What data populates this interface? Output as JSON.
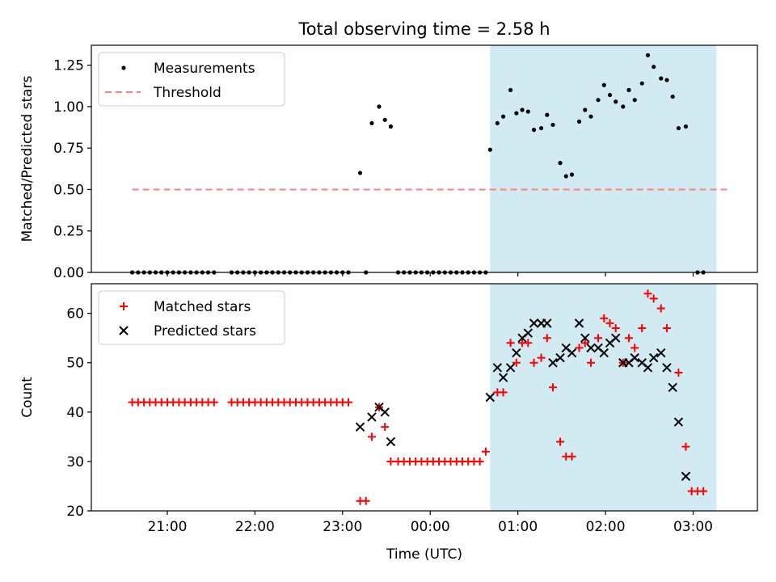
{
  "title": "Total observing time = 2.58 h",
  "colors": {
    "measurements": "#000000",
    "threshold": "#ff7f7f",
    "matched": "#ff0000",
    "predicted": "#000000",
    "span": "#add8e6"
  },
  "chart_data": [
    {
      "type": "scatter",
      "panel": "top",
      "ylabel": "Matched/Predicted stars",
      "ylim": [
        0,
        1.37
      ],
      "yticks": [
        0.0,
        0.25,
        0.5,
        0.75,
        1.0,
        1.25
      ],
      "ytick_labels": [
        "0.00",
        "0.25",
        "0.50",
        "0.75",
        "1.00",
        "1.25"
      ],
      "legend": {
        "position": "top-left",
        "entries": [
          "Measurements",
          "Threshold"
        ]
      },
      "shaded_span": {
        "from": "00:41",
        "to": "03:16"
      },
      "threshold": {
        "name": "Threshold",
        "value": 0.5,
        "from": "20:36",
        "to": "03:26"
      },
      "series": [
        {
          "name": "Measurements",
          "marker": "dot",
          "points": [
            [
              "20:36",
              0
            ],
            [
              "20:40",
              0
            ],
            [
              "20:44",
              0
            ],
            [
              "20:48",
              0
            ],
            [
              "20:52",
              0
            ],
            [
              "20:56",
              0
            ],
            [
              "21:00",
              0
            ],
            [
              "21:04",
              0
            ],
            [
              "21:08",
              0
            ],
            [
              "21:12",
              0
            ],
            [
              "21:16",
              0
            ],
            [
              "21:20",
              0
            ],
            [
              "21:24",
              0
            ],
            [
              "21:28",
              0
            ],
            [
              "21:32",
              0
            ],
            [
              "21:44",
              0
            ],
            [
              "21:48",
              0
            ],
            [
              "21:52",
              0
            ],
            [
              "21:56",
              0
            ],
            [
              "22:00",
              0
            ],
            [
              "22:04",
              0
            ],
            [
              "22:08",
              0
            ],
            [
              "22:12",
              0
            ],
            [
              "22:16",
              0
            ],
            [
              "22:20",
              0
            ],
            [
              "22:24",
              0
            ],
            [
              "22:28",
              0
            ],
            [
              "22:32",
              0
            ],
            [
              "22:36",
              0
            ],
            [
              "22:40",
              0
            ],
            [
              "22:44",
              0
            ],
            [
              "22:48",
              0
            ],
            [
              "22:52",
              0
            ],
            [
              "22:56",
              0
            ],
            [
              "23:00",
              0
            ],
            [
              "23:04",
              0
            ],
            [
              "23:12",
              0.6
            ],
            [
              "23:16",
              0
            ],
            [
              "23:20",
              0.9
            ],
            [
              "23:25",
              1.0
            ],
            [
              "23:29",
              0.92
            ],
            [
              "23:33",
              0.88
            ],
            [
              "23:38",
              0
            ],
            [
              "23:42",
              0
            ],
            [
              "23:46",
              0
            ],
            [
              "23:50",
              0
            ],
            [
              "23:54",
              0
            ],
            [
              "23:58",
              0
            ],
            [
              "00:02",
              0
            ],
            [
              "00:06",
              0
            ],
            [
              "00:10",
              0
            ],
            [
              "00:14",
              0
            ],
            [
              "00:18",
              0
            ],
            [
              "00:22",
              0
            ],
            [
              "00:26",
              0
            ],
            [
              "00:30",
              0
            ],
            [
              "00:34",
              0
            ],
            [
              "00:38",
              0
            ],
            [
              "00:41",
              0.74
            ],
            [
              "00:46",
              0.9
            ],
            [
              "00:50",
              0.94
            ],
            [
              "00:55",
              1.1
            ],
            [
              "00:59",
              0.96
            ],
            [
              "01:03",
              0.98
            ],
            [
              "01:07",
              0.97
            ],
            [
              "01:11",
              0.86
            ],
            [
              "01:16",
              0.87
            ],
            [
              "01:20",
              0.95
            ],
            [
              "01:24",
              0.89
            ],
            [
              "01:29",
              0.66
            ],
            [
              "01:33",
              0.58
            ],
            [
              "01:37",
              0.59
            ],
            [
              "01:42",
              0.91
            ],
            [
              "01:46",
              0.98
            ],
            [
              "01:50",
              0.94
            ],
            [
              "01:55",
              1.04
            ],
            [
              "01:59",
              1.13
            ],
            [
              "02:03",
              1.07
            ],
            [
              "02:07",
              1.03
            ],
            [
              "02:12",
              1.0
            ],
            [
              "02:16",
              1.1
            ],
            [
              "02:20",
              1.04
            ],
            [
              "02:25",
              1.14
            ],
            [
              "02:29",
              1.31
            ],
            [
              "02:33",
              1.24
            ],
            [
              "02:38",
              1.17
            ],
            [
              "02:42",
              1.16
            ],
            [
              "02:46",
              1.06
            ],
            [
              "02:50",
              0.87
            ],
            [
              "02:55",
              0.88
            ],
            [
              "03:03",
              0
            ],
            [
              "03:07",
              0
            ]
          ]
        }
      ]
    },
    {
      "type": "scatter",
      "panel": "bottom",
      "xlabel": "Time (UTC)",
      "ylabel": "Count",
      "ylim": [
        20,
        66
      ],
      "yticks": [
        20,
        30,
        40,
        50,
        60
      ],
      "ytick_labels": [
        "20",
        "30",
        "40",
        "50",
        "60"
      ],
      "xticks": [
        "21:00",
        "22:00",
        "23:00",
        "00:00",
        "01:00",
        "02:00",
        "03:00"
      ],
      "xtick_labels": [
        "21:00",
        "22:00",
        "23:00",
        "00:00",
        "01:00",
        "02:00",
        "03:00"
      ],
      "legend": {
        "position": "top-left",
        "entries": [
          "Matched stars",
          "Predicted stars"
        ]
      },
      "shaded_span": {
        "from": "00:41",
        "to": "03:16"
      },
      "series": [
        {
          "name": "Matched stars",
          "marker": "plus",
          "points": [
            [
              "20:36",
              42
            ],
            [
              "20:40",
              42
            ],
            [
              "20:44",
              42
            ],
            [
              "20:48",
              42
            ],
            [
              "20:52",
              42
            ],
            [
              "20:56",
              42
            ],
            [
              "21:00",
              42
            ],
            [
              "21:04",
              42
            ],
            [
              "21:08",
              42
            ],
            [
              "21:12",
              42
            ],
            [
              "21:16",
              42
            ],
            [
              "21:20",
              42
            ],
            [
              "21:24",
              42
            ],
            [
              "21:28",
              42
            ],
            [
              "21:32",
              42
            ],
            [
              "21:44",
              42
            ],
            [
              "21:48",
              42
            ],
            [
              "21:52",
              42
            ],
            [
              "21:56",
              42
            ],
            [
              "22:00",
              42
            ],
            [
              "22:04",
              42
            ],
            [
              "22:08",
              42
            ],
            [
              "22:12",
              42
            ],
            [
              "22:16",
              42
            ],
            [
              "22:20",
              42
            ],
            [
              "22:24",
              42
            ],
            [
              "22:28",
              42
            ],
            [
              "22:32",
              42
            ],
            [
              "22:36",
              42
            ],
            [
              "22:40",
              42
            ],
            [
              "22:44",
              42
            ],
            [
              "22:48",
              42
            ],
            [
              "22:52",
              42
            ],
            [
              "22:56",
              42
            ],
            [
              "23:00",
              42
            ],
            [
              "23:04",
              42
            ],
            [
              "23:12",
              22
            ],
            [
              "23:16",
              22
            ],
            [
              "23:20",
              35
            ],
            [
              "23:25",
              41
            ],
            [
              "23:29",
              37
            ],
            [
              "23:33",
              30
            ],
            [
              "23:38",
              30
            ],
            [
              "23:42",
              30
            ],
            [
              "23:46",
              30
            ],
            [
              "23:50",
              30
            ],
            [
              "23:54",
              30
            ],
            [
              "23:58",
              30
            ],
            [
              "00:02",
              30
            ],
            [
              "00:06",
              30
            ],
            [
              "00:10",
              30
            ],
            [
              "00:14",
              30
            ],
            [
              "00:18",
              30
            ],
            [
              "00:22",
              30
            ],
            [
              "00:26",
              30
            ],
            [
              "00:30",
              30
            ],
            [
              "00:34",
              30
            ],
            [
              "00:38",
              32
            ],
            [
              "00:46",
              44
            ],
            [
              "00:50",
              44
            ],
            [
              "00:55",
              54
            ],
            [
              "00:59",
              50
            ],
            [
              "01:03",
              54
            ],
            [
              "01:07",
              54
            ],
            [
              "01:11",
              50
            ],
            [
              "01:16",
              51
            ],
            [
              "01:20",
              55
            ],
            [
              "01:24",
              45
            ],
            [
              "01:29",
              34
            ],
            [
              "01:33",
              31
            ],
            [
              "01:37",
              31
            ],
            [
              "01:42",
              53
            ],
            [
              "01:46",
              54
            ],
            [
              "01:50",
              50
            ],
            [
              "01:55",
              55
            ],
            [
              "01:59",
              59
            ],
            [
              "02:03",
              58
            ],
            [
              "02:07",
              57
            ],
            [
              "02:12",
              50
            ],
            [
              "02:16",
              55
            ],
            [
              "02:20",
              53
            ],
            [
              "02:25",
              57
            ],
            [
              "02:29",
              64
            ],
            [
              "02:33",
              63
            ],
            [
              "02:38",
              61
            ],
            [
              "02:42",
              57
            ],
            [
              "02:50",
              48
            ],
            [
              "02:55",
              33
            ],
            [
              "02:59",
              24
            ],
            [
              "03:03",
              24
            ],
            [
              "03:07",
              24
            ]
          ]
        },
        {
          "name": "Predicted stars",
          "marker": "x",
          "points": [
            [
              "23:12",
              37
            ],
            [
              "23:20",
              39
            ],
            [
              "23:25",
              41
            ],
            [
              "23:29",
              40
            ],
            [
              "23:33",
              34
            ],
            [
              "00:41",
              43
            ],
            [
              "00:46",
              49
            ],
            [
              "00:50",
              47
            ],
            [
              "00:55",
              49
            ],
            [
              "00:59",
              52
            ],
            [
              "01:03",
              55
            ],
            [
              "01:07",
              56
            ],
            [
              "01:11",
              58
            ],
            [
              "01:16",
              58
            ],
            [
              "01:20",
              58
            ],
            [
              "01:24",
              50
            ],
            [
              "01:29",
              51
            ],
            [
              "01:33",
              53
            ],
            [
              "01:37",
              52
            ],
            [
              "01:42",
              58
            ],
            [
              "01:46",
              55
            ],
            [
              "01:50",
              53
            ],
            [
              "01:55",
              53
            ],
            [
              "01:59",
              52
            ],
            [
              "02:03",
              54
            ],
            [
              "02:07",
              55
            ],
            [
              "02:12",
              50
            ],
            [
              "02:16",
              50
            ],
            [
              "02:20",
              51
            ],
            [
              "02:25",
              50
            ],
            [
              "02:29",
              49
            ],
            [
              "02:33",
              51
            ],
            [
              "02:38",
              52
            ],
            [
              "02:42",
              49
            ],
            [
              "02:46",
              45
            ],
            [
              "02:50",
              38
            ],
            [
              "02:55",
              27
            ]
          ]
        }
      ]
    }
  ]
}
